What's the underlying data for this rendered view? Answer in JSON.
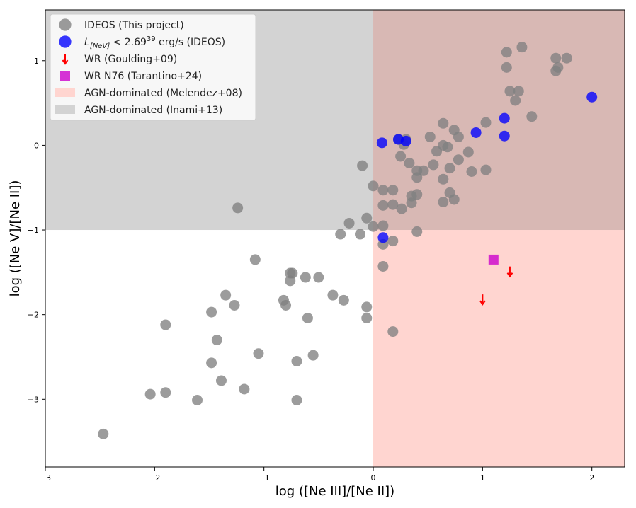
{
  "chart_data": {
    "type": "scatter",
    "title": "",
    "xlabel": "log ([Ne III]/[Ne II])",
    "ylabel": "log ([Ne V]/[Ne II])",
    "xlim": [
      -3,
      2.3
    ],
    "ylim": [
      -3.8,
      1.6
    ],
    "xticks": [
      -3,
      -2,
      -1,
      0,
      1,
      2
    ],
    "xtick_labels": [
      "−3",
      "−2",
      "−1",
      "0",
      "1",
      "2"
    ],
    "yticks": [
      -3,
      -2,
      -1,
      0,
      1
    ],
    "ytick_labels": [
      "−3",
      "−2",
      "−1",
      "0",
      "1"
    ],
    "regions": [
      {
        "name": "AGN-dominated (Inami+13)",
        "x_range": [
          -3,
          0
        ],
        "y_range": [
          -1,
          1.6
        ],
        "color": "#d3d3d3"
      },
      {
        "name": "AGN-dominated (Melendez+08)",
        "x_range": [
          0,
          2.3
        ],
        "y_range": [
          -3.8,
          -1
        ],
        "color": "#ffd5d0"
      },
      {
        "name": "overlap",
        "x_range": [
          0,
          2.3
        ],
        "y_range": [
          -1,
          1.6
        ],
        "color": "#d8b8b4"
      }
    ],
    "series": [
      {
        "name": "IDEOS (This project)",
        "marker": "circle",
        "color": "#808080",
        "points": [
          [
            -2.47,
            -3.41
          ],
          [
            -2.04,
            -2.94
          ],
          [
            -1.9,
            -2.92
          ],
          [
            -1.9,
            -2.12
          ],
          [
            -1.61,
            -3.01
          ],
          [
            -1.48,
            -2.57
          ],
          [
            -1.48,
            -1.97
          ],
          [
            -1.43,
            -2.3
          ],
          [
            -1.39,
            -2.78
          ],
          [
            -1.35,
            -1.77
          ],
          [
            -1.27,
            -1.89
          ],
          [
            -1.24,
            -0.74
          ],
          [
            -1.18,
            -2.88
          ],
          [
            -1.08,
            -1.35
          ],
          [
            -1.05,
            -2.46
          ],
          [
            -0.82,
            -1.83
          ],
          [
            -0.8,
            -1.89
          ],
          [
            -0.76,
            -1.51
          ],
          [
            -0.76,
            -1.6
          ],
          [
            -0.74,
            -1.51
          ],
          [
            -0.7,
            -2.55
          ],
          [
            -0.7,
            -3.01
          ],
          [
            -0.62,
            -1.56
          ],
          [
            -0.6,
            -2.04
          ],
          [
            -0.55,
            -2.48
          ],
          [
            -0.5,
            -1.56
          ],
          [
            -0.37,
            -1.77
          ],
          [
            -0.3,
            -1.05
          ],
          [
            -0.27,
            -1.83
          ],
          [
            -0.22,
            -0.92
          ],
          [
            -0.12,
            -1.05
          ],
          [
            -0.1,
            -0.24
          ],
          [
            -0.06,
            -0.86
          ],
          [
            -0.06,
            -1.91
          ],
          [
            -0.06,
            -2.04
          ],
          [
            0.0,
            -0.96
          ],
          [
            0.0,
            -0.48
          ],
          [
            0.09,
            -0.53
          ],
          [
            0.09,
            -0.71
          ],
          [
            0.09,
            -0.95
          ],
          [
            0.09,
            -1.17
          ],
          [
            0.09,
            -1.43
          ],
          [
            0.18,
            -0.53
          ],
          [
            0.18,
            -0.7
          ],
          [
            0.18,
            -1.13
          ],
          [
            0.18,
            -2.2
          ],
          [
            0.23,
            0.07
          ],
          [
            0.25,
            -0.13
          ],
          [
            0.26,
            -0.75
          ],
          [
            0.28,
            0.01
          ],
          [
            0.3,
            0.07
          ],
          [
            0.33,
            -0.21
          ],
          [
            0.35,
            -0.6
          ],
          [
            0.35,
            -0.68
          ],
          [
            0.4,
            -0.3
          ],
          [
            0.4,
            -0.38
          ],
          [
            0.4,
            -0.58
          ],
          [
            0.4,
            -1.02
          ],
          [
            0.46,
            -0.3
          ],
          [
            0.52,
            0.1
          ],
          [
            0.55,
            -0.23
          ],
          [
            0.58,
            -0.07
          ],
          [
            0.64,
            0.26
          ],
          [
            0.64,
            0.0
          ],
          [
            0.64,
            -0.4
          ],
          [
            0.64,
            -0.67
          ],
          [
            0.68,
            -0.02
          ],
          [
            0.7,
            -0.27
          ],
          [
            0.7,
            -0.56
          ],
          [
            0.74,
            0.18
          ],
          [
            0.74,
            -0.64
          ],
          [
            0.78,
            0.1
          ],
          [
            0.78,
            -0.17
          ],
          [
            0.87,
            -0.08
          ],
          [
            0.9,
            -0.31
          ],
          [
            1.03,
            0.27
          ],
          [
            1.03,
            -0.29
          ],
          [
            1.22,
            1.1
          ],
          [
            1.22,
            0.92
          ],
          [
            1.25,
            0.64
          ],
          [
            1.3,
            0.53
          ],
          [
            1.33,
            0.64
          ],
          [
            1.36,
            1.16
          ],
          [
            1.45,
            0.34
          ],
          [
            1.67,
            1.03
          ],
          [
            1.67,
            0.88
          ],
          [
            1.69,
            0.92
          ],
          [
            1.77,
            1.03
          ]
        ]
      },
      {
        "name": "L_[NeV] < 2.69^39 erg/s (IDEOS)",
        "marker": "circle",
        "color": "#0000ff",
        "points": [
          [
            0.08,
            0.03
          ],
          [
            0.23,
            0.07
          ],
          [
            0.3,
            0.05
          ],
          [
            0.94,
            0.15
          ],
          [
            1.2,
            0.32
          ],
          [
            1.2,
            0.11
          ],
          [
            2.0,
            0.57
          ],
          [
            0.09,
            -1.09
          ]
        ]
      },
      {
        "name": "WR (Goulding+09)",
        "marker": "down-arrow",
        "color": "#ff0000",
        "points": [
          [
            1.25,
            -1.49
          ],
          [
            1.0,
            -1.82
          ]
        ]
      },
      {
        "name": "WR N76 (Tarantino+24)",
        "marker": "square",
        "color": "#cc00cc",
        "points": [
          [
            1.1,
            -1.35
          ]
        ]
      }
    ],
    "legend": {
      "position": "top-left",
      "entries": [
        {
          "label": "IDEOS (This project)",
          "marker": "circle",
          "color": "#808080"
        },
        {
          "label_prefix": "L",
          "label_sub": "[NeV]",
          "label_mid": " < 2.69",
          "label_sup": "39",
          "label_suffix": " erg/s (IDEOS)",
          "marker": "circle",
          "color": "#0000ff"
        },
        {
          "label": "WR (Goulding+09)",
          "marker": "down-arrow",
          "color": "#ff0000"
        },
        {
          "label": "WR N76 (Tarantino+24)",
          "marker": "square",
          "color": "#cc00cc"
        },
        {
          "label": "AGN-dominated (Melendez+08)",
          "marker": "patch",
          "color": "#ffd5d0"
        },
        {
          "label": "AGN-dominated (Inami+13)",
          "marker": "patch",
          "color": "#d3d3d3"
        }
      ]
    }
  }
}
